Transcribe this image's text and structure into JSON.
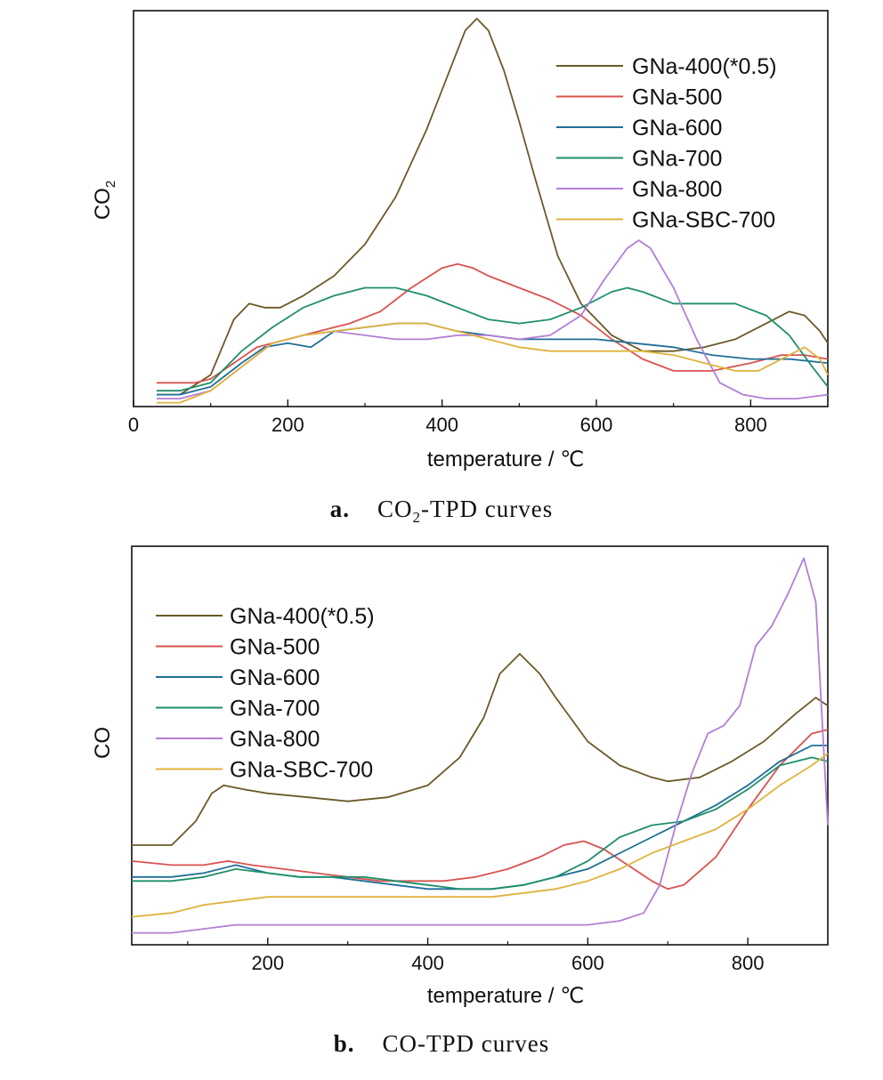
{
  "colors": {
    "GNa-400(*0.5)": "#6b5a28",
    "GNa-500": "#d9534f",
    "GNa-600": "#1f6f98",
    "GNa-700": "#1f8f6a",
    "GNa-800": "#b27fd6",
    "GNa-SBC-700": "#e0b23c"
  },
  "chart_data": [
    {
      "type": "line",
      "caption_letter": "a.",
      "caption_pre": "CO",
      "caption_sub": "2",
      "caption_post": "-TPD curves",
      "ylabel_main": "CO",
      "ylabel_sub": "2",
      "xlabel": "temperature / ℃",
      "xlim": [
        0,
        900
      ],
      "xticks": [
        0,
        200,
        400,
        600,
        800
      ],
      "tick_labels": [
        "0",
        "200",
        "400",
        "600",
        "800"
      ],
      "ylim": [
        0,
        1
      ],
      "legend_position": "top-right",
      "series": [
        {
          "name": "GNa-400(*0.5)",
          "x": [
            30,
            60,
            100,
            130,
            150,
            170,
            190,
            220,
            260,
            300,
            340,
            380,
            410,
            430,
            445,
            460,
            480,
            500,
            520,
            550,
            580,
            620,
            660,
            700,
            740,
            780,
            820,
            850,
            870,
            890,
            900
          ],
          "y": [
            0.03,
            0.03,
            0.08,
            0.22,
            0.26,
            0.25,
            0.25,
            0.28,
            0.33,
            0.41,
            0.53,
            0.7,
            0.85,
            0.95,
            0.98,
            0.95,
            0.85,
            0.72,
            0.58,
            0.38,
            0.26,
            0.18,
            0.14,
            0.14,
            0.15,
            0.17,
            0.21,
            0.24,
            0.23,
            0.19,
            0.16
          ]
        },
        {
          "name": "GNa-500",
          "x": [
            30,
            80,
            100,
            130,
            160,
            200,
            240,
            280,
            320,
            360,
            400,
            420,
            440,
            460,
            500,
            540,
            580,
            620,
            660,
            700,
            750,
            800,
            840,
            870,
            900
          ],
          "y": [
            0.06,
            0.06,
            0.07,
            0.11,
            0.15,
            0.17,
            0.19,
            0.21,
            0.24,
            0.3,
            0.35,
            0.36,
            0.35,
            0.33,
            0.3,
            0.27,
            0.23,
            0.17,
            0.12,
            0.09,
            0.09,
            0.11,
            0.13,
            0.13,
            0.12
          ]
        },
        {
          "name": "GNa-600",
          "x": [
            30,
            60,
            100,
            140,
            170,
            200,
            230,
            260,
            300,
            340,
            380,
            420,
            460,
            500,
            550,
            600,
            650,
            700,
            750,
            800,
            850,
            900
          ],
          "y": [
            0.03,
            0.03,
            0.05,
            0.11,
            0.15,
            0.16,
            0.15,
            0.19,
            0.2,
            0.21,
            0.21,
            0.19,
            0.18,
            0.17,
            0.17,
            0.17,
            0.16,
            0.15,
            0.13,
            0.12,
            0.12,
            0.11
          ]
        },
        {
          "name": "GNa-700",
          "x": [
            30,
            60,
            100,
            140,
            180,
            220,
            260,
            300,
            340,
            380,
            420,
            460,
            500,
            540,
            580,
            620,
            640,
            660,
            700,
            740,
            780,
            820,
            850,
            880,
            900
          ],
          "y": [
            0.04,
            0.04,
            0.06,
            0.14,
            0.2,
            0.25,
            0.28,
            0.3,
            0.3,
            0.28,
            0.25,
            0.22,
            0.21,
            0.22,
            0.25,
            0.29,
            0.3,
            0.29,
            0.26,
            0.26,
            0.26,
            0.23,
            0.18,
            0.1,
            0.05
          ]
        },
        {
          "name": "GNa-800",
          "x": [
            30,
            60,
            100,
            140,
            180,
            220,
            260,
            300,
            340,
            380,
            420,
            460,
            500,
            540,
            580,
            610,
            640,
            655,
            670,
            700,
            730,
            760,
            790,
            820,
            860,
            900
          ],
          "y": [
            0.02,
            0.02,
            0.04,
            0.1,
            0.16,
            0.18,
            0.19,
            0.18,
            0.17,
            0.17,
            0.18,
            0.18,
            0.17,
            0.18,
            0.23,
            0.32,
            0.4,
            0.42,
            0.4,
            0.3,
            0.17,
            0.06,
            0.03,
            0.02,
            0.02,
            0.03
          ]
        },
        {
          "name": "GNa-SBC-700",
          "x": [
            30,
            60,
            100,
            140,
            180,
            220,
            260,
            300,
            340,
            380,
            420,
            460,
            500,
            540,
            580,
            620,
            660,
            700,
            740,
            780,
            810,
            840,
            870,
            890,
            900
          ],
          "y": [
            0.01,
            0.01,
            0.04,
            0.1,
            0.16,
            0.18,
            0.19,
            0.2,
            0.21,
            0.21,
            0.19,
            0.17,
            0.15,
            0.14,
            0.14,
            0.14,
            0.14,
            0.13,
            0.11,
            0.09,
            0.09,
            0.12,
            0.15,
            0.12,
            0.08
          ]
        }
      ]
    },
    {
      "type": "line",
      "caption_letter": "b.",
      "caption_pre": "CO",
      "caption_sub": "",
      "caption_post": "-TPD curves",
      "ylabel_main": "CO",
      "ylabel_sub": "",
      "xlabel": "temperature / ℃",
      "xlim": [
        30,
        900
      ],
      "xticks": [
        200,
        400,
        600,
        800
      ],
      "tick_labels": [
        "200",
        "400",
        "600",
        "800"
      ],
      "ylim": [
        0,
        1
      ],
      "legend_position": "top-left",
      "series": [
        {
          "name": "GNa-400(*0.5)",
          "x": [
            30,
            80,
            110,
            130,
            145,
            170,
            200,
            250,
            300,
            350,
            400,
            440,
            470,
            490,
            515,
            540,
            560,
            600,
            640,
            680,
            700,
            740,
            780,
            820,
            860,
            885,
            900
          ],
          "y": [
            0.25,
            0.25,
            0.31,
            0.38,
            0.4,
            0.39,
            0.38,
            0.37,
            0.36,
            0.37,
            0.4,
            0.47,
            0.57,
            0.68,
            0.73,
            0.68,
            0.62,
            0.51,
            0.45,
            0.42,
            0.41,
            0.42,
            0.46,
            0.51,
            0.58,
            0.62,
            0.6
          ]
        },
        {
          "name": "GNa-500",
          "x": [
            30,
            80,
            120,
            150,
            180,
            220,
            260,
            300,
            340,
            380,
            420,
            460,
            500,
            540,
            570,
            595,
            620,
            650,
            680,
            700,
            720,
            760,
            800,
            840,
            880,
            900
          ],
          "y": [
            0.21,
            0.2,
            0.2,
            0.21,
            0.2,
            0.19,
            0.18,
            0.17,
            0.16,
            0.16,
            0.16,
            0.17,
            0.19,
            0.22,
            0.25,
            0.26,
            0.24,
            0.2,
            0.16,
            0.14,
            0.15,
            0.22,
            0.34,
            0.45,
            0.53,
            0.54
          ]
        },
        {
          "name": "GNa-600",
          "x": [
            30,
            80,
            120,
            160,
            200,
            240,
            280,
            320,
            360,
            400,
            440,
            480,
            520,
            560,
            600,
            640,
            680,
            720,
            760,
            800,
            840,
            880,
            900
          ],
          "y": [
            0.17,
            0.17,
            0.18,
            0.2,
            0.18,
            0.17,
            0.17,
            0.16,
            0.15,
            0.14,
            0.14,
            0.14,
            0.15,
            0.17,
            0.19,
            0.23,
            0.27,
            0.31,
            0.35,
            0.4,
            0.46,
            0.5,
            0.5
          ]
        },
        {
          "name": "GNa-700",
          "x": [
            30,
            80,
            120,
            160,
            200,
            240,
            280,
            320,
            360,
            400,
            440,
            480,
            520,
            560,
            600,
            640,
            680,
            720,
            760,
            800,
            840,
            880,
            900
          ],
          "y": [
            0.16,
            0.16,
            0.17,
            0.19,
            0.18,
            0.17,
            0.17,
            0.17,
            0.16,
            0.15,
            0.14,
            0.14,
            0.15,
            0.17,
            0.21,
            0.27,
            0.3,
            0.31,
            0.34,
            0.39,
            0.45,
            0.47,
            0.46
          ]
        },
        {
          "name": "GNa-800",
          "x": [
            30,
            80,
            120,
            160,
            200,
            240,
            280,
            320,
            360,
            400,
            440,
            480,
            520,
            560,
            600,
            640,
            670,
            690,
            710,
            730,
            750,
            770,
            790,
            810,
            830,
            850,
            870,
            885,
            900
          ],
          "y": [
            0.03,
            0.03,
            0.04,
            0.05,
            0.05,
            0.05,
            0.05,
            0.05,
            0.05,
            0.05,
            0.05,
            0.05,
            0.05,
            0.05,
            0.05,
            0.06,
            0.08,
            0.15,
            0.3,
            0.43,
            0.53,
            0.55,
            0.6,
            0.75,
            0.8,
            0.88,
            0.97,
            0.86,
            0.3
          ]
        },
        {
          "name": "GNa-SBC-700",
          "x": [
            30,
            80,
            120,
            160,
            200,
            240,
            280,
            320,
            360,
            400,
            440,
            480,
            520,
            560,
            600,
            640,
            680,
            720,
            760,
            800,
            840,
            880,
            900
          ],
          "y": [
            0.07,
            0.08,
            0.1,
            0.11,
            0.12,
            0.12,
            0.12,
            0.12,
            0.12,
            0.12,
            0.12,
            0.12,
            0.13,
            0.14,
            0.16,
            0.19,
            0.23,
            0.26,
            0.29,
            0.34,
            0.4,
            0.45,
            0.48
          ]
        }
      ]
    }
  ]
}
